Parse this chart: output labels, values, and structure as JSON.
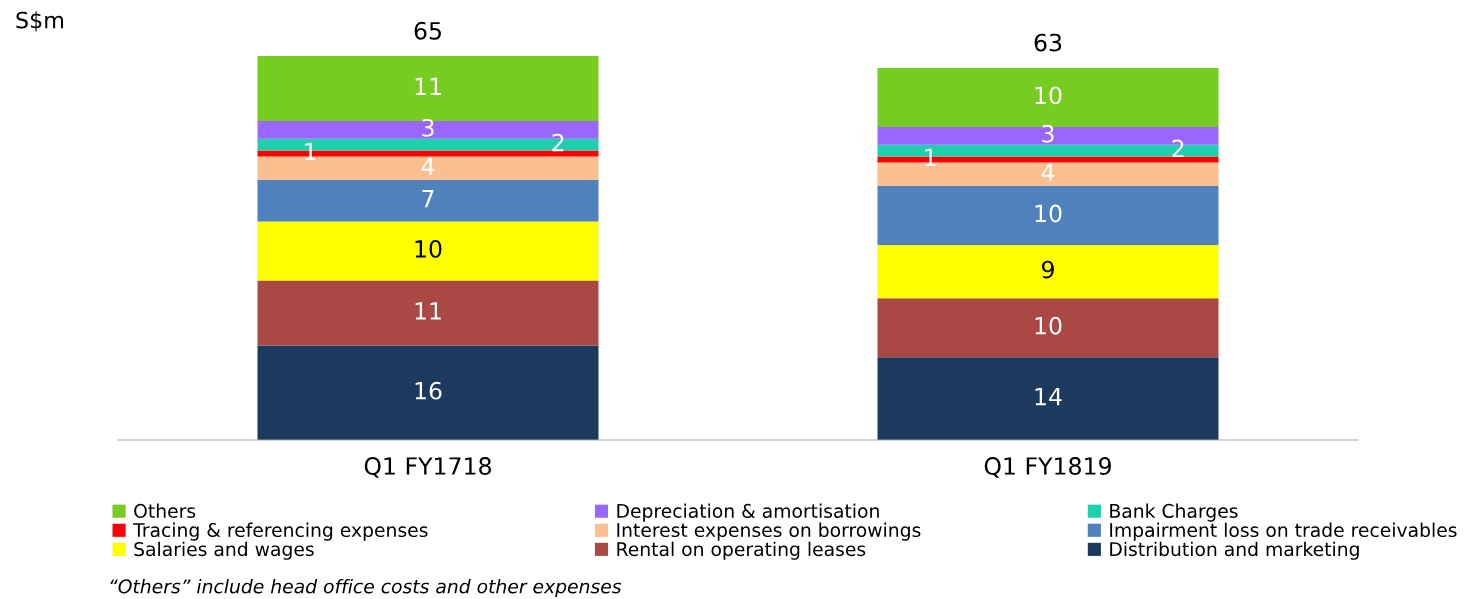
{
  "chart_data": {
    "type": "bar",
    "stacked": true,
    "ylabel": "S$m",
    "categories": [
      "Q1 FY1718",
      "Q1 FY1819"
    ],
    "series": [
      {
        "name": "Distribution and marketing",
        "color": "#1b3a5e",
        "values": [
          16,
          14
        ]
      },
      {
        "name": "Rental on operating leases",
        "color": "#aa4944",
        "values": [
          11,
          10
        ]
      },
      {
        "name": "Salaries and wages",
        "color": "#ffff00",
        "values": [
          10,
          9
        ]
      },
      {
        "name": "Impairment loss on trade receivables",
        "color": "#4f81bd",
        "values": [
          7,
          10
        ]
      },
      {
        "name": "Interest expenses on borrowings",
        "color": "#fac090",
        "values": [
          4,
          4
        ]
      },
      {
        "name": "Tracing & referencing expenses",
        "color": "#ff0000",
        "values": [
          1,
          1
        ]
      },
      {
        "name": "Bank Charges",
        "color": "#1fcfad",
        "values": [
          2,
          2
        ]
      },
      {
        "name": "Depreciation & amortisation",
        "color": "#9966ff",
        "values": [
          3,
          3
        ]
      },
      {
        "name": "Others",
        "color": "#77cc22",
        "values": [
          11,
          10
        ]
      }
    ],
    "data_labels": true,
    "totals": [
      "65",
      "63"
    ],
    "legend": "bottom",
    "grid": false,
    "annotations": [
      "“Others” include head office costs and other expenses"
    ]
  }
}
